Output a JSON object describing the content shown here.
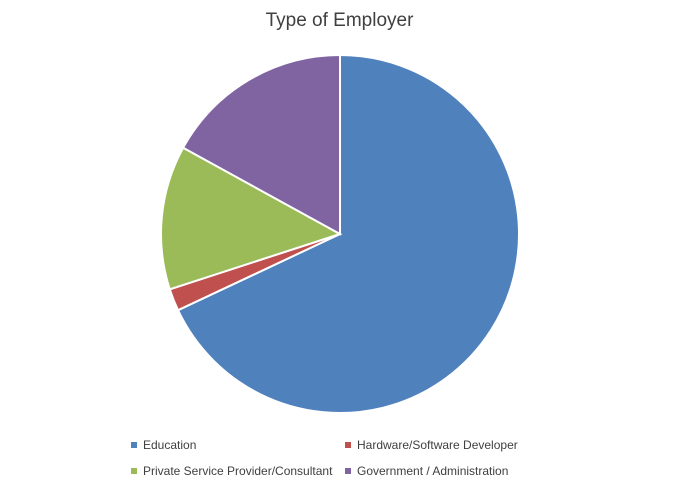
{
  "chart_data": {
    "type": "pie",
    "title": "Type of Employer",
    "categories": [
      "Education",
      "Hardware/Software Developer",
      "Private Service Provider/Consultant",
      "Government / Administration"
    ],
    "values": [
      68,
      2,
      13,
      17
    ],
    "colors": [
      "#4F81BD",
      "#C0504D",
      "#9BBB59",
      "#8064A2"
    ],
    "legend_position": "bottom"
  }
}
